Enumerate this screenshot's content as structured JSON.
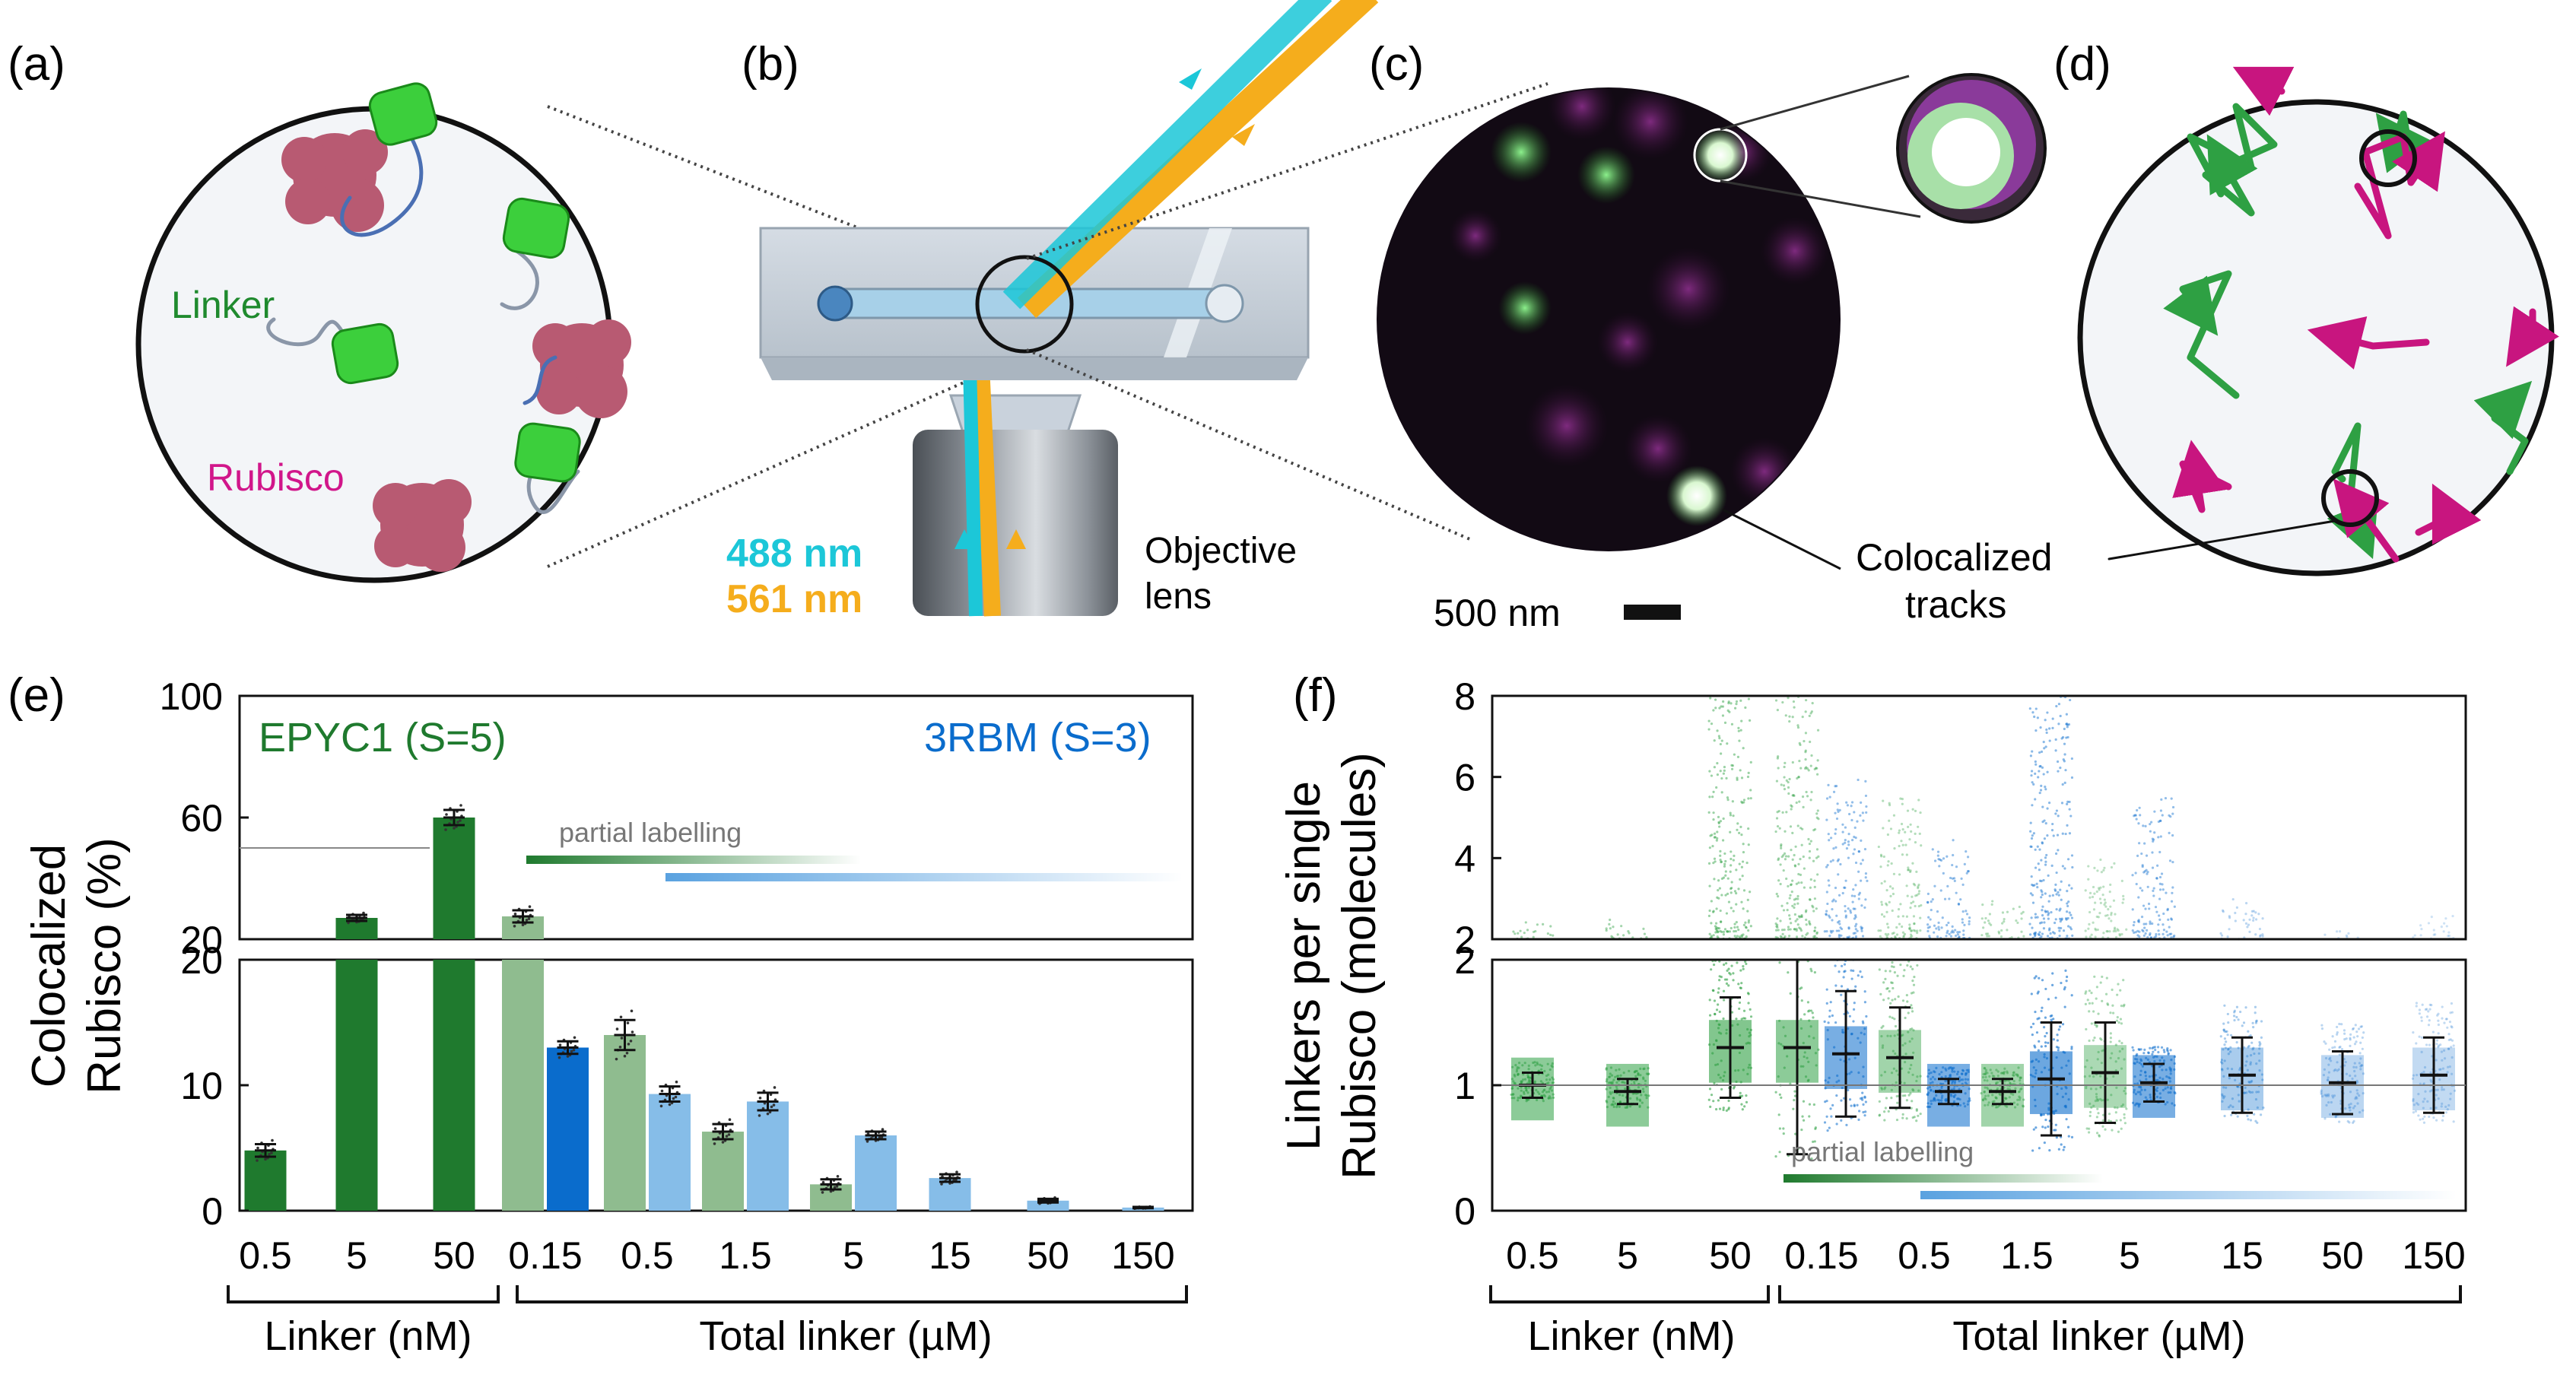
{
  "panel_labels": {
    "a": "(a)",
    "b": "(b)",
    "c": "(c)",
    "d": "(d)",
    "e": "(e)",
    "f": "(f)"
  },
  "panel_a": {
    "linker_label": "Linker",
    "rubisco_label": "Rubisco"
  },
  "panel_b": {
    "wavelength_488": "488 nm",
    "wavelength_561": "561 nm",
    "objective_line1": "Objective",
    "objective_line2": "lens"
  },
  "panel_c": {
    "scale_bar": "500 nm",
    "callout_line1": "Colocalized",
    "callout_line2": "tracks"
  },
  "colors": {
    "green": "#1f7a2e",
    "green_light": "#8fbc8f",
    "blue": "#0a6ccc",
    "blue_light": "#86bde8",
    "cyan": "#1cc7d8",
    "orange": "#f5ad1c",
    "magenta": "#c8157f",
    "point_green": "#2ea043"
  },
  "groups": {
    "nM_ticks": [
      "0.5",
      "5",
      "50"
    ],
    "uM_ticks": [
      "0.15",
      "0.5",
      "1.5",
      "5",
      "15",
      "50",
      "150"
    ],
    "linker_nM": "Linker (nM)",
    "total_uM": "Total linker (µM)"
  },
  "chart_data": [
    {
      "type": "bar",
      "panel": "e",
      "legend": {
        "epyc1": "EPYC1 (S=5)",
        "rbm": "3RBM (S=3)"
      },
      "ylabel_line1": "Colocalized",
      "ylabel_line2": "Rubisco (%)",
      "annotation": "partial labelling",
      "upper_ticks": [
        "100",
        "60",
        "20"
      ],
      "lower_ticks": [
        "20",
        "10",
        "0"
      ],
      "upper_ylim": [
        20,
        100
      ],
      "lower_ylim": [
        0,
        20
      ],
      "axis_break": true,
      "bars": [
        {
          "tick": "0.5",
          "series": "EPYC1",
          "color": "green",
          "value": 4.8,
          "err": 0.5
        },
        {
          "tick": "5",
          "series": "EPYC1",
          "color": "green",
          "value": 27,
          "err": 1
        },
        {
          "tick": "50",
          "series": "EPYC1",
          "color": "green",
          "value": 60,
          "err": 2.5
        },
        {
          "tick": "0.15",
          "series": "EPYC1",
          "color": "green_light",
          "value": 27.5,
          "err": 2
        },
        {
          "tick": "0.15",
          "series": "3RBM",
          "color": "blue",
          "value": 13,
          "err": 0.5
        },
        {
          "tick": "0.5",
          "series": "EPYC1",
          "color": "green_light",
          "value": 14,
          "err": 1.2
        },
        {
          "tick": "0.5",
          "series": "3RBM",
          "color": "blue_light",
          "value": 9.3,
          "err": 0.6
        },
        {
          "tick": "1.5",
          "series": "EPYC1",
          "color": "green_light",
          "value": 6.3,
          "err": 0.6
        },
        {
          "tick": "1.5",
          "series": "3RBM",
          "color": "blue_light",
          "value": 8.7,
          "err": 0.7
        },
        {
          "tick": "5",
          "series": "EPYC1",
          "color": "green_light",
          "value": 2.1,
          "err": 0.4
        },
        {
          "tick": "5",
          "series": "3RBM",
          "color": "blue_light",
          "value": 6,
          "err": 0.3
        },
        {
          "tick": "15",
          "series": "3RBM",
          "color": "blue_light",
          "value": 2.6,
          "err": 0.3
        },
        {
          "tick": "50",
          "series": "3RBM",
          "color": "blue_light",
          "value": 0.8,
          "err": 0.15
        },
        {
          "tick": "150",
          "series": "3RBM",
          "color": "blue_light",
          "value": 0.25,
          "err": 0.05
        }
      ]
    },
    {
      "type": "scatter",
      "panel": "f",
      "ylabel_line1": "Linkers per single",
      "ylabel_line2": "Rubisco (molecules)",
      "annotation": "partial labelling",
      "upper_ticks": [
        "8",
        "6",
        "4",
        "2"
      ],
      "lower_ticks": [
        "2",
        "1",
        "0"
      ],
      "upper_ylim": [
        2,
        8
      ],
      "lower_ylim": [
        0,
        2
      ],
      "axis_break": true,
      "reference_line": 1,
      "groups": [
        {
          "tick": "0.5",
          "series": "EPYC1",
          "color": "point_green",
          "mean": 1.0,
          "err": 0.1,
          "max": 2.5,
          "alpha": 0.55
        },
        {
          "tick": "5",
          "series": "EPYC1",
          "color": "point_green",
          "mean": 0.95,
          "err": 0.1,
          "max": 2.5,
          "alpha": 0.55
        },
        {
          "tick": "50",
          "series": "EPYC1",
          "color": "point_green",
          "mean": 1.3,
          "err": 0.4,
          "max": 8,
          "alpha": 0.6
        },
        {
          "tick": "0.15",
          "series": "EPYC1",
          "color": "point_green",
          "mean": 1.3,
          "err": 0.85,
          "max": 8,
          "alpha": 0.55
        },
        {
          "tick": "0.15",
          "series": "3RBM",
          "color": "blue",
          "mean": 1.25,
          "err": 0.5,
          "max": 6,
          "alpha": 0.55
        },
        {
          "tick": "0.5",
          "series": "EPYC1",
          "color": "point_green",
          "mean": 1.22,
          "err": 0.4,
          "max": 5.5,
          "alpha": 0.45
        },
        {
          "tick": "0.5",
          "series": "3RBM",
          "color": "blue",
          "mean": 0.95,
          "err": 0.1,
          "max": 4.5,
          "alpha": 0.55
        },
        {
          "tick": "1.5",
          "series": "EPYC1",
          "color": "point_green",
          "mean": 0.95,
          "err": 0.1,
          "max": 3,
          "alpha": 0.45
        },
        {
          "tick": "1.5",
          "series": "3RBM",
          "color": "blue",
          "mean": 1.05,
          "err": 0.45,
          "max": 8,
          "alpha": 0.6
        },
        {
          "tick": "5",
          "series": "EPYC1",
          "color": "point_green",
          "mean": 1.1,
          "err": 0.4,
          "max": 4,
          "alpha": 0.4
        },
        {
          "tick": "5",
          "series": "3RBM",
          "color": "blue",
          "mean": 1.02,
          "err": 0.15,
          "max": 5.5,
          "alpha": 0.55
        },
        {
          "tick": "15",
          "series": "3RBM",
          "color": "blue",
          "mean": 1.08,
          "err": 0.3,
          "max": 3,
          "alpha": 0.35
        },
        {
          "tick": "50",
          "series": "3RBM",
          "color": "blue",
          "mean": 1.02,
          "err": 0.25,
          "max": 2.2,
          "alpha": 0.28
        },
        {
          "tick": "150",
          "series": "3RBM",
          "color": "blue",
          "mean": 1.08,
          "err": 0.3,
          "max": 2.6,
          "alpha": 0.25
        }
      ]
    }
  ]
}
